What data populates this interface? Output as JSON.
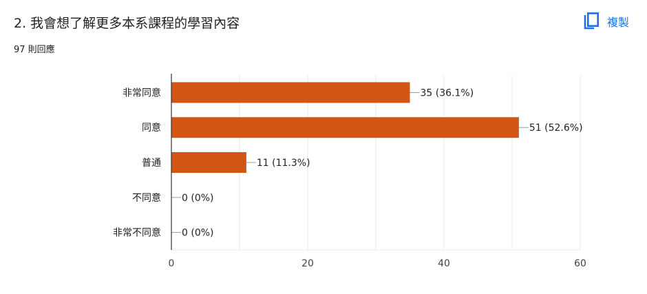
{
  "question": {
    "title": "2. 我會想了解更多本系課程的學習內容",
    "response_count": "97 則回應"
  },
  "copy_button": {
    "label": "複製",
    "icon": "copy-icon"
  },
  "colors": {
    "bar": "#d35513",
    "accent": "#1a73e8",
    "grid": "#e8e8e8",
    "axis": "#333333"
  },
  "chart_data": {
    "type": "bar",
    "orientation": "horizontal",
    "categories": [
      "非常同意",
      "同意",
      "普通",
      "不同意",
      "非常不同意"
    ],
    "values": [
      35,
      51,
      11,
      0,
      0
    ],
    "data_labels": [
      "35 (36.1%)",
      "51 (52.6%)",
      "11 (11.3%)",
      "0 (0%)",
      "0 (0%)"
    ],
    "xlim": [
      0,
      60
    ],
    "xticks": [
      0,
      20,
      40,
      60
    ],
    "grid": true
  }
}
